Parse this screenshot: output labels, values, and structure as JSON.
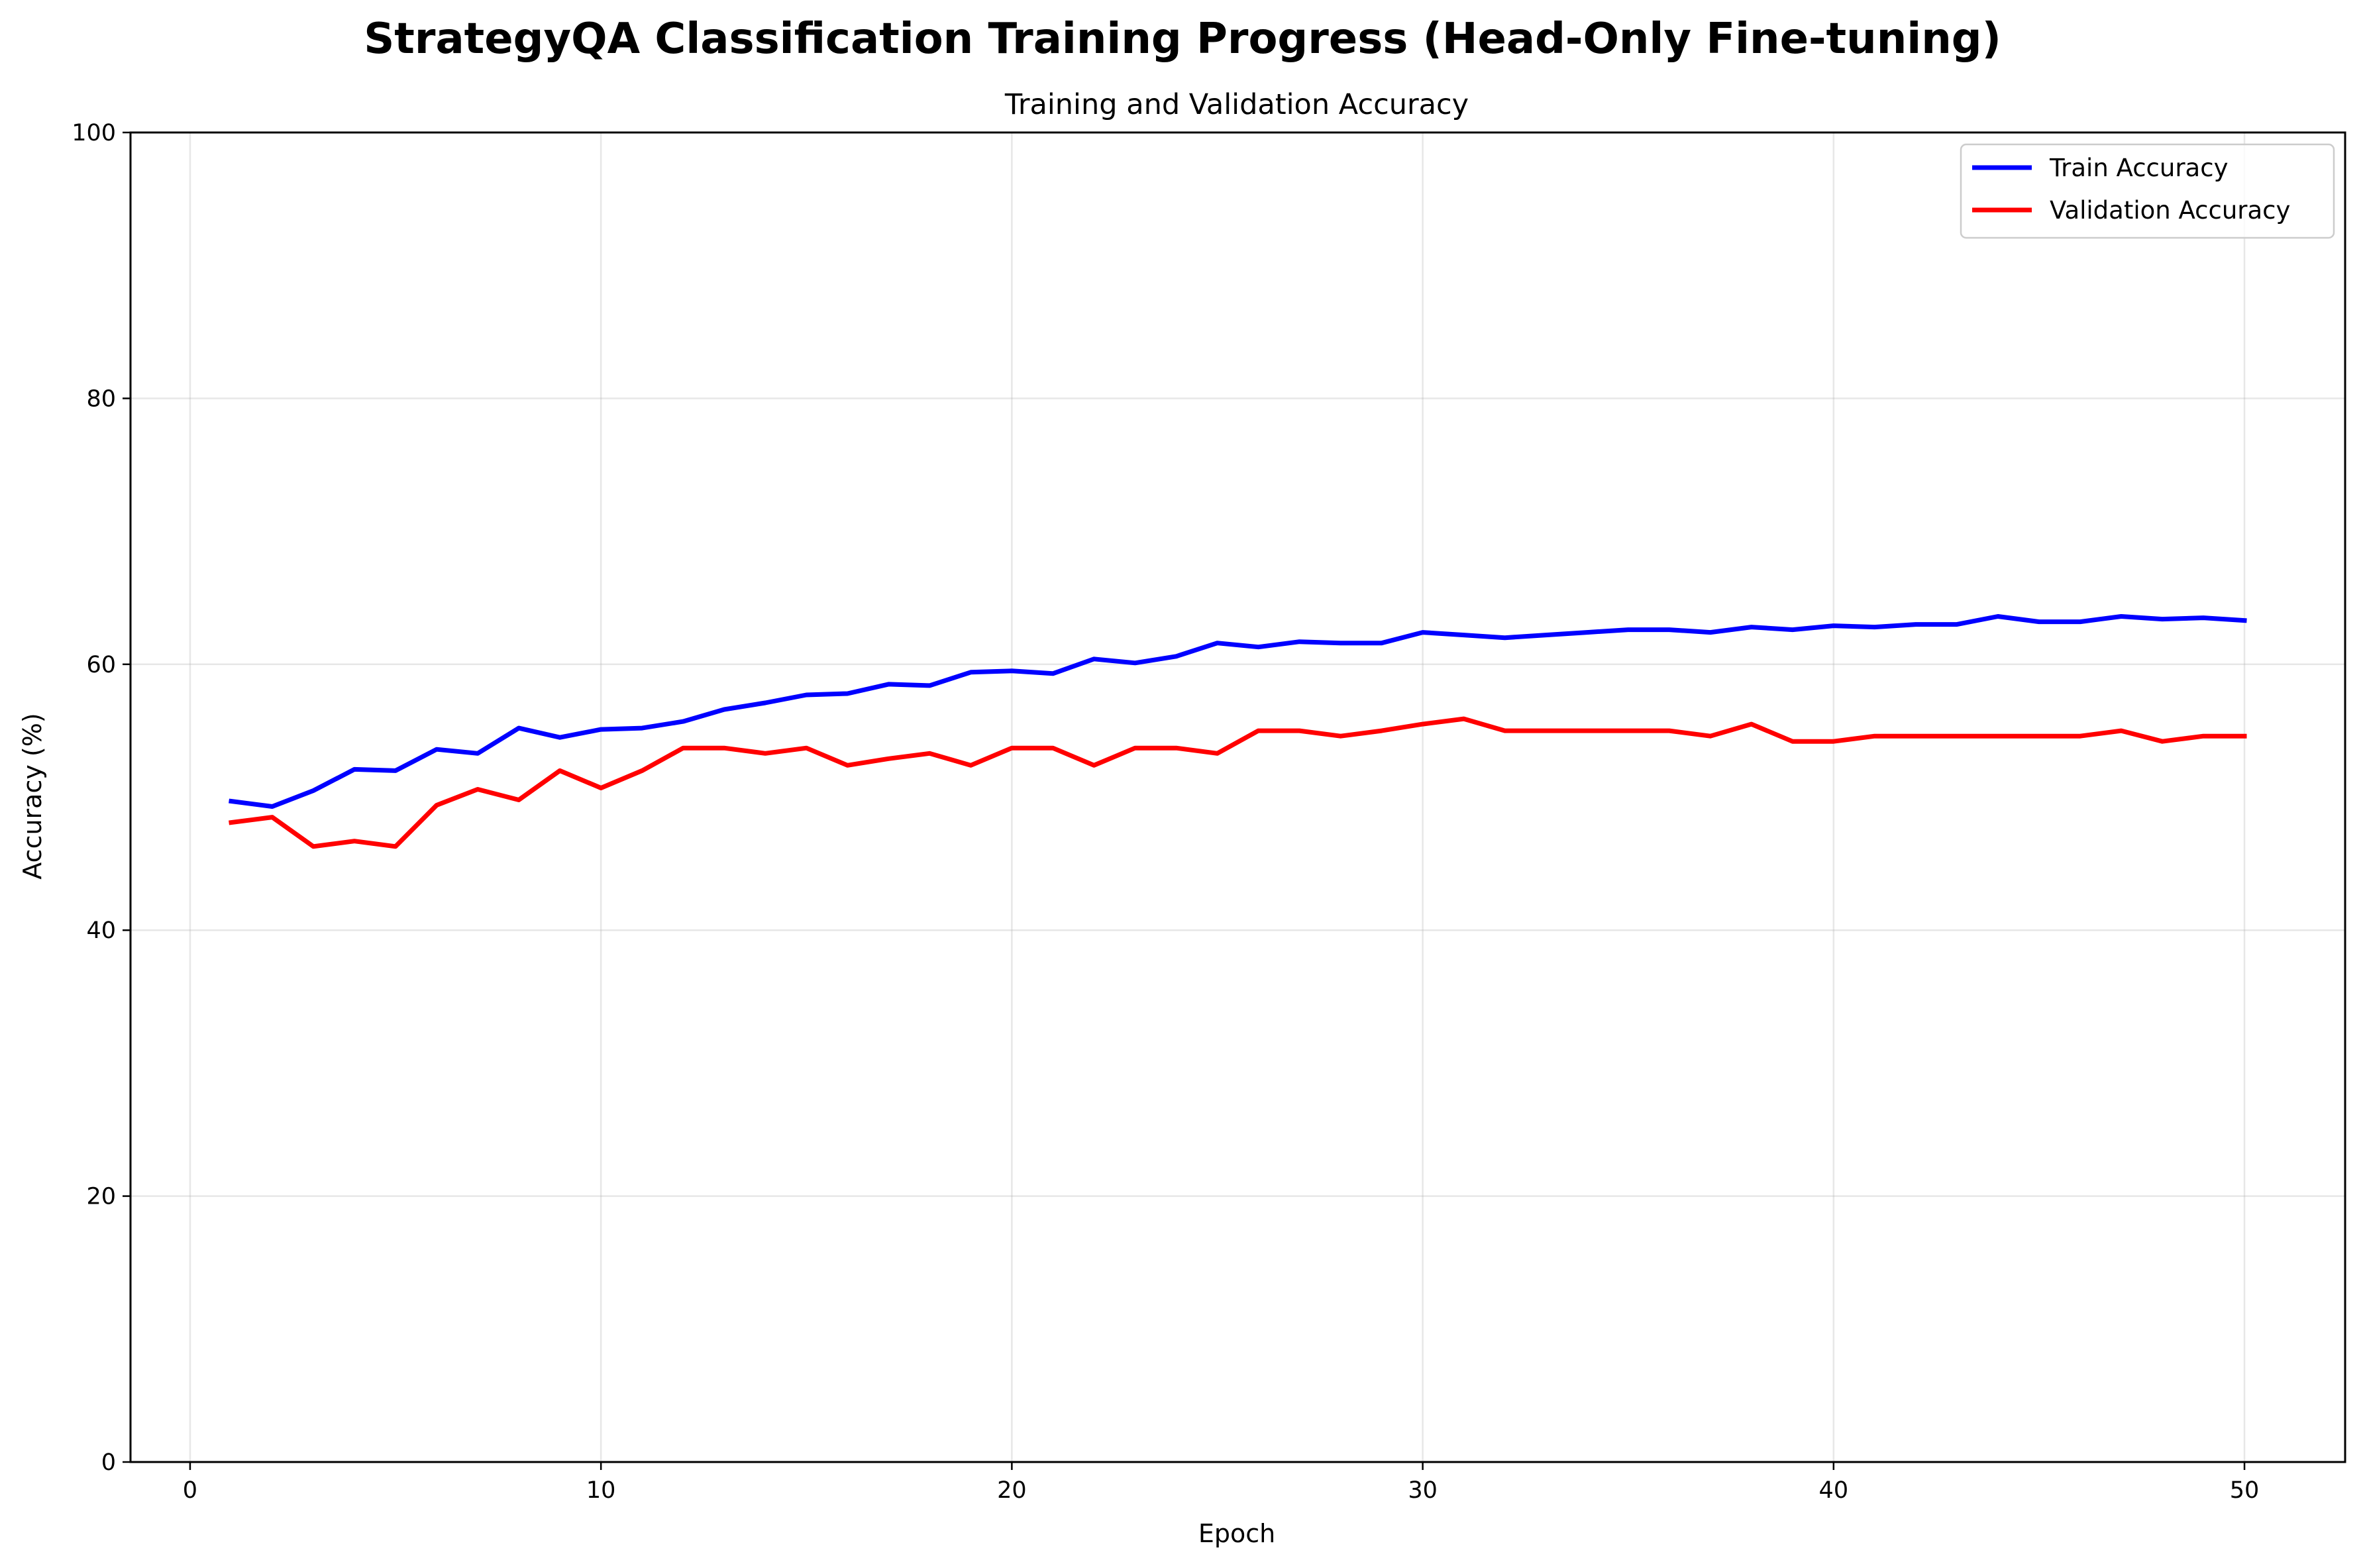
{
  "chart_data": {
    "type": "line",
    "suptitle": "StrategyQA Classification Training Progress (Head-Only Fine-tuning)",
    "title": "Training and Validation Accuracy",
    "xlabel": "Epoch",
    "ylabel": "Accuracy (%)",
    "xlim": [
      -1.45,
      52.45
    ],
    "ylim": [
      0,
      100
    ],
    "xticks": [
      0,
      10,
      20,
      30,
      40,
      50
    ],
    "yticks": [
      0,
      20,
      40,
      60,
      80,
      100
    ],
    "grid": true,
    "legend_position": "top-right",
    "x": [
      1,
      2,
      3,
      4,
      5,
      6,
      7,
      8,
      9,
      10,
      11,
      12,
      13,
      14,
      15,
      16,
      17,
      18,
      19,
      20,
      21,
      22,
      23,
      24,
      25,
      26,
      27,
      28,
      29,
      30,
      31,
      32,
      33,
      34,
      35,
      36,
      37,
      38,
      39,
      40,
      41,
      42,
      43,
      44,
      45,
      46,
      47,
      48,
      49,
      50
    ],
    "series": [
      {
        "name": "Train Accuracy",
        "color": "#0000ff",
        "values": [
          49.7,
          49.3,
          50.5,
          52.1,
          52.0,
          53.6,
          53.3,
          55.2,
          54.5,
          55.1,
          55.2,
          55.7,
          56.6,
          57.1,
          57.7,
          57.8,
          58.5,
          58.4,
          59.4,
          59.5,
          59.3,
          60.4,
          60.1,
          60.6,
          61.6,
          61.3,
          61.7,
          61.6,
          61.6,
          62.4,
          62.2,
          62.0,
          62.2,
          62.4,
          62.6,
          62.6,
          62.4,
          62.8,
          62.6,
          62.9,
          62.8,
          63.0,
          63.0,
          63.6,
          63.2,
          63.2,
          63.6,
          63.4,
          63.5,
          63.3
        ]
      },
      {
        "name": "Validation Accuracy",
        "color": "#ff0000",
        "values": [
          48.1,
          48.5,
          46.3,
          46.7,
          46.3,
          49.4,
          50.6,
          49.8,
          52.0,
          50.7,
          52.0,
          53.7,
          53.7,
          53.3,
          53.7,
          52.4,
          52.9,
          53.3,
          52.4,
          53.7,
          53.7,
          52.4,
          53.7,
          53.7,
          53.3,
          55.0,
          55.0,
          54.6,
          55.0,
          55.5,
          55.9,
          55.0,
          55.0,
          55.0,
          55.0,
          55.0,
          54.6,
          55.5,
          54.2,
          54.2,
          54.6,
          54.6,
          54.6,
          54.6,
          54.6,
          54.6,
          55.0,
          54.2,
          54.6,
          54.6
        ]
      }
    ]
  }
}
